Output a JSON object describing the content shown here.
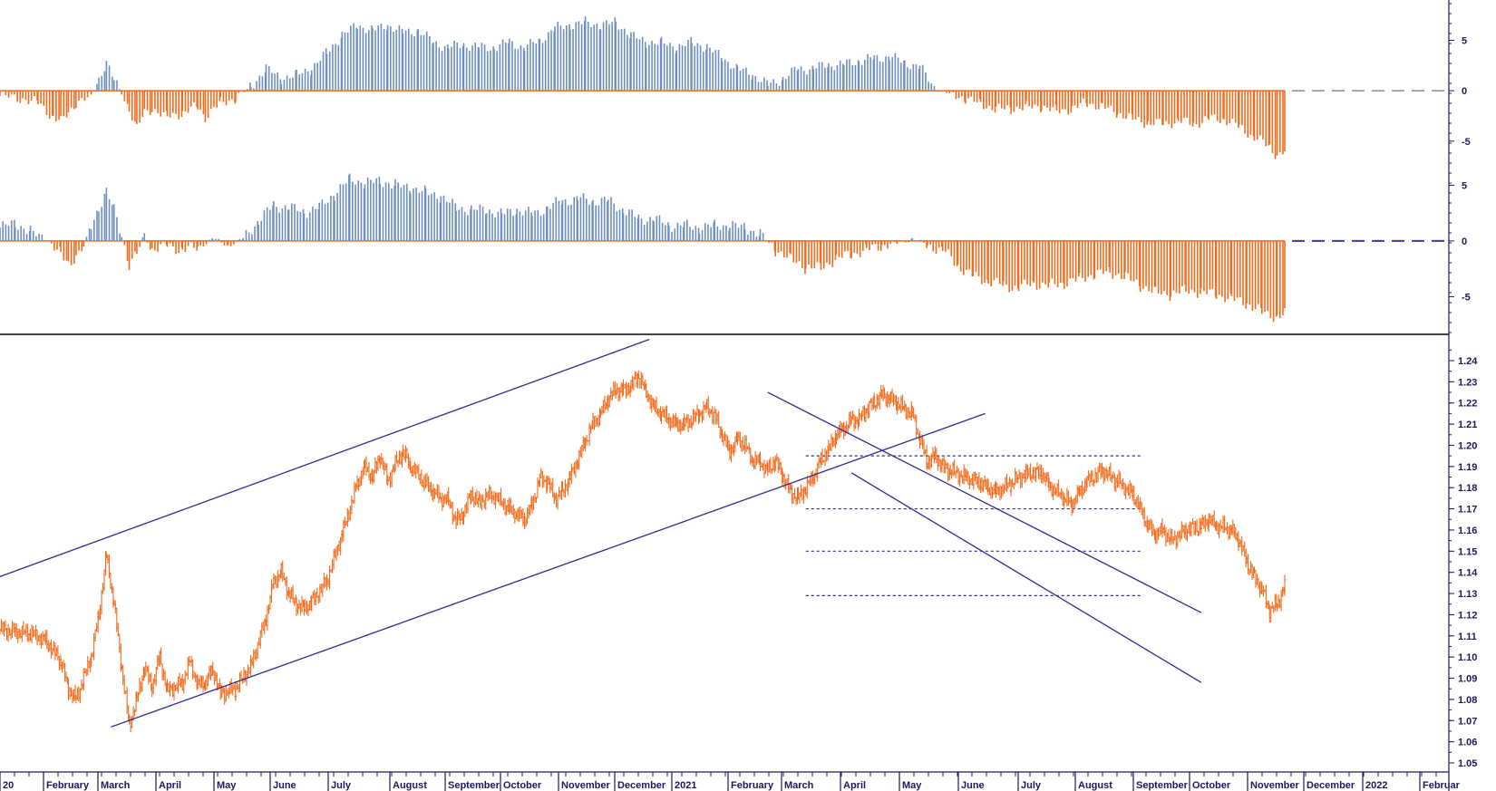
{
  "chart_data": [
    {
      "type": "bar",
      "panel": "oscillator-top",
      "yticks": [
        "5",
        "0",
        "-5"
      ],
      "ylim": [
        -7,
        9
      ],
      "colors": {
        "positive": "#6f8fc0",
        "negative": "#f26a1b"
      },
      "series_points": [
        [
          0,
          -0.5
        ],
        [
          3,
          -0.8
        ],
        [
          5,
          -1.2
        ],
        [
          7,
          -2.6
        ],
        [
          8,
          -3.1
        ],
        [
          9,
          -2.2
        ],
        [
          10,
          -1.2
        ],
        [
          12,
          -0.6
        ],
        [
          13,
          1.2
        ],
        [
          14,
          2.8
        ],
        [
          15,
          1.0
        ],
        [
          16,
          -0.2
        ],
        [
          17,
          -1.8
        ],
        [
          18,
          -3.8
        ],
        [
          19,
          -2.2
        ],
        [
          20,
          -1.8
        ],
        [
          22,
          -2.6
        ],
        [
          24,
          -2.2
        ],
        [
          26,
          -1.6
        ],
        [
          27,
          -2.6
        ],
        [
          29,
          -1.2
        ],
        [
          31,
          -0.8
        ],
        [
          33,
          0.4
        ],
        [
          35,
          2.2
        ],
        [
          37,
          1.2
        ],
        [
          39,
          1.6
        ],
        [
          41,
          2.2
        ],
        [
          43,
          3.8
        ],
        [
          45,
          5.5
        ],
        [
          47,
          6.5
        ],
        [
          49,
          6.0
        ],
        [
          51,
          6.5
        ],
        [
          53,
          5.8
        ],
        [
          55,
          6.0
        ],
        [
          57,
          4.8
        ],
        [
          59,
          4.3
        ],
        [
          61,
          4.6
        ],
        [
          63,
          4.3
        ],
        [
          65,
          4.3
        ],
        [
          67,
          4.8
        ],
        [
          69,
          4.3
        ],
        [
          71,
          5.0
        ],
        [
          73,
          6.2
        ],
        [
          75,
          6.5
        ],
        [
          77,
          6.8
        ],
        [
          79,
          6.5
        ],
        [
          81,
          6.8
        ],
        [
          83,
          5.5
        ],
        [
          85,
          4.8
        ],
        [
          87,
          4.8
        ],
        [
          89,
          4.3
        ],
        [
          91,
          4.8
        ],
        [
          93,
          4.3
        ],
        [
          95,
          3.3
        ],
        [
          97,
          2.2
        ],
        [
          99,
          1.6
        ],
        [
          101,
          0.6
        ],
        [
          103,
          1.2
        ],
        [
          105,
          2.2
        ],
        [
          107,
          2.2
        ],
        [
          109,
          2.6
        ],
        [
          111,
          2.6
        ],
        [
          113,
          3.0
        ],
        [
          115,
          3.2
        ],
        [
          117,
          3.4
        ],
        [
          119,
          2.8
        ],
        [
          121,
          2.4
        ],
        [
          123,
          0.2
        ],
        [
          125,
          -0.3
        ],
        [
          127,
          -0.8
        ],
        [
          129,
          -1.3
        ],
        [
          131,
          -1.8
        ],
        [
          133,
          -1.8
        ],
        [
          135,
          -1.6
        ],
        [
          137,
          -1.6
        ],
        [
          139,
          -2.0
        ],
        [
          141,
          -1.8
        ],
        [
          143,
          -1.2
        ],
        [
          145,
          -1.6
        ],
        [
          147,
          -2.2
        ],
        [
          149,
          -2.8
        ],
        [
          151,
          -3.2
        ],
        [
          153,
          -3.3
        ],
        [
          155,
          -3.0
        ],
        [
          157,
          -3.3
        ],
        [
          159,
          -2.8
        ],
        [
          161,
          -2.8
        ],
        [
          163,
          -3.6
        ],
        [
          165,
          -4.6
        ],
        [
          167,
          -5.6
        ],
        [
          168,
          -6.4
        ],
        [
          169,
          -6.0
        ]
      ]
    },
    {
      "type": "bar",
      "panel": "oscillator-middle",
      "yticks": [
        "5",
        "0",
        "-5"
      ],
      "ylim": [
        -7,
        6.5
      ],
      "colors": {
        "positive": "#6f8fc0",
        "negative": "#f26a1b"
      },
      "series_points": [
        [
          0,
          1.2
        ],
        [
          2,
          1.6
        ],
        [
          4,
          0.8
        ],
        [
          6,
          0.2
        ],
        [
          8,
          -1.2
        ],
        [
          9,
          -2.0
        ],
        [
          10,
          -1.4
        ],
        [
          11,
          -0.6
        ],
        [
          12,
          1.4
        ],
        [
          13,
          3.0
        ],
        [
          14,
          4.4
        ],
        [
          15,
          2.8
        ],
        [
          16,
          0.6
        ],
        [
          17,
          -2.2
        ],
        [
          18,
          -1.2
        ],
        [
          19,
          0.6
        ],
        [
          20,
          -0.8
        ],
        [
          22,
          -0.4
        ],
        [
          24,
          -0.8
        ],
        [
          26,
          -0.6
        ],
        [
          28,
          0.2
        ],
        [
          30,
          -0.4
        ],
        [
          32,
          0.2
        ],
        [
          34,
          1.8
        ],
        [
          36,
          3.2
        ],
        [
          38,
          3.0
        ],
        [
          40,
          2.6
        ],
        [
          42,
          3.0
        ],
        [
          44,
          4.2
        ],
        [
          46,
          5.6
        ],
        [
          48,
          5.2
        ],
        [
          50,
          5.4
        ],
        [
          52,
          5.0
        ],
        [
          54,
          4.8
        ],
        [
          56,
          4.4
        ],
        [
          58,
          4.0
        ],
        [
          60,
          3.0
        ],
        [
          62,
          2.8
        ],
        [
          64,
          2.8
        ],
        [
          66,
          2.4
        ],
        [
          68,
          2.8
        ],
        [
          70,
          2.4
        ],
        [
          72,
          3.0
        ],
        [
          74,
          3.6
        ],
        [
          76,
          3.8
        ],
        [
          78,
          3.6
        ],
        [
          80,
          3.6
        ],
        [
          82,
          2.8
        ],
        [
          84,
          2.0
        ],
        [
          86,
          2.0
        ],
        [
          88,
          1.4
        ],
        [
          90,
          1.4
        ],
        [
          92,
          1.2
        ],
        [
          94,
          1.4
        ],
        [
          96,
          1.4
        ],
        [
          98,
          1.2
        ],
        [
          100,
          0.6
        ],
        [
          102,
          -0.8
        ],
        [
          104,
          -1.6
        ],
        [
          106,
          -2.4
        ],
        [
          108,
          -2.4
        ],
        [
          110,
          -1.6
        ],
        [
          112,
          -1.2
        ],
        [
          114,
          -0.8
        ],
        [
          116,
          -0.4
        ],
        [
          118,
          -0.2
        ],
        [
          120,
          0.2
        ],
        [
          122,
          -0.4
        ],
        [
          124,
          -0.8
        ],
        [
          126,
          -2.2
        ],
        [
          128,
          -3.2
        ],
        [
          130,
          -3.6
        ],
        [
          132,
          -4.0
        ],
        [
          134,
          -4.2
        ],
        [
          136,
          -3.8
        ],
        [
          138,
          -4.0
        ],
        [
          140,
          -3.8
        ],
        [
          142,
          -3.4
        ],
        [
          144,
          -3.0
        ],
        [
          146,
          -2.8
        ],
        [
          148,
          -3.2
        ],
        [
          150,
          -4.0
        ],
        [
          152,
          -4.6
        ],
        [
          154,
          -4.8
        ],
        [
          156,
          -4.4
        ],
        [
          158,
          -4.6
        ],
        [
          160,
          -4.8
        ],
        [
          162,
          -5.2
        ],
        [
          164,
          -5.6
        ],
        [
          166,
          -6.4
        ],
        [
          168,
          -6.8
        ],
        [
          169,
          -6.6
        ]
      ]
    },
    {
      "type": "line",
      "panel": "price",
      "title": "",
      "xlabel": "",
      "ylabel": "",
      "ylim": [
        1.05,
        1.245
      ],
      "yticks": [
        "1.24",
        "1.23",
        "1.22",
        "1.21",
        "1.20",
        "1.19",
        "1.18",
        "1.17",
        "1.16",
        "1.15",
        "1.14",
        "1.13",
        "1.12",
        "1.11",
        "1.10",
        "1.09",
        "1.08",
        "1.07",
        "1.06",
        "1.05"
      ],
      "xticks": [
        "20",
        "February",
        "March",
        "April",
        "May",
        "June",
        "July",
        "August",
        "September",
        "October",
        "November",
        "December",
        "2021",
        "February",
        "March",
        "April",
        "May",
        "June",
        "July",
        "August",
        "September",
        "October",
        "November",
        "December",
        "2022",
        "Februar"
      ],
      "color": "#f26a1b",
      "series_points": [
        [
          0,
          1.113
        ],
        [
          2,
          1.112
        ],
        [
          4,
          1.111
        ],
        [
          6,
          1.108
        ],
        [
          8,
          1.098
        ],
        [
          9,
          1.085
        ],
        [
          10,
          1.08
        ],
        [
          11,
          1.09
        ],
        [
          12,
          1.1
        ],
        [
          13,
          1.12
        ],
        [
          14,
          1.148
        ],
        [
          15,
          1.125
        ],
        [
          16,
          1.095
        ],
        [
          17,
          1.068
        ],
        [
          18,
          1.08
        ],
        [
          19,
          1.095
        ],
        [
          20,
          1.086
        ],
        [
          21,
          1.1
        ],
        [
          22,
          1.084
        ],
        [
          24,
          1.088
        ],
        [
          25,
          1.098
        ],
        [
          26,
          1.087
        ],
        [
          27,
          1.088
        ],
        [
          28,
          1.094
        ],
        [
          29,
          1.083
        ],
        [
          31,
          1.085
        ],
        [
          33,
          1.096
        ],
        [
          35,
          1.118
        ],
        [
          36,
          1.136
        ],
        [
          37,
          1.14
        ],
        [
          38,
          1.13
        ],
        [
          39,
          1.125
        ],
        [
          40,
          1.123
        ],
        [
          41,
          1.126
        ],
        [
          43,
          1.136
        ],
        [
          45,
          1.158
        ],
        [
          47,
          1.182
        ],
        [
          48,
          1.19
        ],
        [
          49,
          1.185
        ],
        [
          50,
          1.195
        ],
        [
          51,
          1.183
        ],
        [
          52,
          1.191
        ],
        [
          53,
          1.197
        ],
        [
          54,
          1.19
        ],
        [
          56,
          1.182
        ],
        [
          57,
          1.178
        ],
        [
          58,
          1.175
        ],
        [
          59,
          1.174
        ],
        [
          60,
          1.164
        ],
        [
          61,
          1.168
        ],
        [
          62,
          1.177
        ],
        [
          63,
          1.173
        ],
        [
          64,
          1.176
        ],
        [
          65,
          1.176
        ],
        [
          67,
          1.17
        ],
        [
          69,
          1.165
        ],
        [
          70,
          1.172
        ],
        [
          71,
          1.184
        ],
        [
          72,
          1.183
        ],
        [
          73,
          1.175
        ],
        [
          74,
          1.178
        ],
        [
          75,
          1.185
        ],
        [
          76,
          1.193
        ],
        [
          77,
          1.202
        ],
        [
          78,
          1.21
        ],
        [
          79,
          1.215
        ],
        [
          80,
          1.222
        ],
        [
          81,
          1.226
        ],
        [
          82,
          1.226
        ],
        [
          83,
          1.228
        ],
        [
          84,
          1.233
        ],
        [
          85,
          1.225
        ],
        [
          86,
          1.218
        ],
        [
          87,
          1.215
        ],
        [
          88,
          1.212
        ],
        [
          89,
          1.21
        ],
        [
          90,
          1.21
        ],
        [
          91,
          1.212
        ],
        [
          92,
          1.215
        ],
        [
          93,
          1.218
        ],
        [
          94,
          1.214
        ],
        [
          95,
          1.205
        ],
        [
          96,
          1.197
        ],
        [
          97,
          1.203
        ],
        [
          98,
          1.2
        ],
        [
          99,
          1.193
        ],
        [
          100,
          1.192
        ],
        [
          101,
          1.188
        ],
        [
          102,
          1.193
        ],
        [
          103,
          1.185
        ],
        [
          104,
          1.178
        ],
        [
          105,
          1.175
        ],
        [
          106,
          1.18
        ],
        [
          107,
          1.185
        ],
        [
          108,
          1.193
        ],
        [
          109,
          1.198
        ],
        [
          110,
          1.205
        ],
        [
          111,
          1.208
        ],
        [
          112,
          1.212
        ],
        [
          113,
          1.212
        ],
        [
          114,
          1.217
        ],
        [
          115,
          1.22
        ],
        [
          116,
          1.224
        ],
        [
          117,
          1.222
        ],
        [
          118,
          1.22
        ],
        [
          119,
          1.217
        ],
        [
          120,
          1.215
        ],
        [
          121,
          1.203
        ],
        [
          122,
          1.192
        ],
        [
          123,
          1.195
        ],
        [
          124,
          1.19
        ],
        [
          125,
          1.188
        ],
        [
          127,
          1.185
        ],
        [
          129,
          1.182
        ],
        [
          130,
          1.18
        ],
        [
          131,
          1.178
        ],
        [
          133,
          1.182
        ],
        [
          135,
          1.187
        ],
        [
          137,
          1.187
        ],
        [
          138,
          1.181
        ],
        [
          140,
          1.175
        ],
        [
          141,
          1.172
        ],
        [
          142,
          1.178
        ],
        [
          143,
          1.183
        ],
        [
          145,
          1.188
        ],
        [
          147,
          1.183
        ],
        [
          149,
          1.177
        ],
        [
          150,
          1.17
        ],
        [
          151,
          1.162
        ],
        [
          152,
          1.158
        ],
        [
          153,
          1.16
        ],
        [
          154,
          1.155
        ],
        [
          156,
          1.16
        ],
        [
          158,
          1.162
        ],
        [
          159,
          1.165
        ],
        [
          160,
          1.162
        ],
        [
          162,
          1.16
        ],
        [
          163,
          1.155
        ],
        [
          164,
          1.145
        ],
        [
          165,
          1.138
        ],
        [
          166,
          1.132
        ],
        [
          167,
          1.122
        ],
        [
          168,
          1.125
        ],
        [
          169,
          1.133
        ]
      ],
      "trendlines": [
        {
          "name": "upper-channel",
          "from": [
            0,
            1.138
          ],
          "to": [
            85.4,
            1.25
          ]
        },
        {
          "name": "lower-channel",
          "from": [
            14.6,
            1.067
          ],
          "to": [
            129.6,
            1.215
          ]
        },
        {
          "name": "desc-upper",
          "from": [
            101,
            1.225
          ],
          "to": [
            158,
            1.121
          ]
        },
        {
          "name": "desc-lower",
          "from": [
            112,
            1.187
          ],
          "to": [
            158,
            1.088
          ]
        }
      ],
      "hlines": [
        1.195,
        1.17,
        1.15,
        1.129
      ]
    }
  ]
}
